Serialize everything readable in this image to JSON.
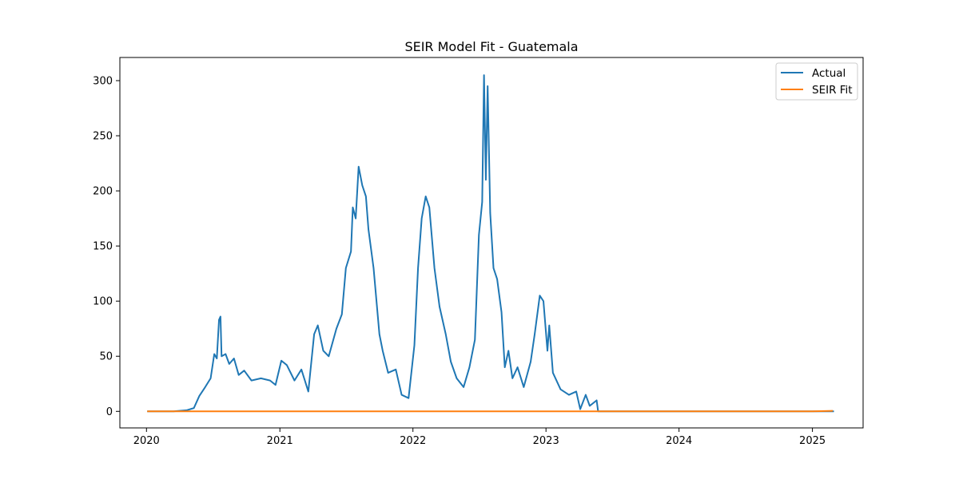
{
  "chart_data": {
    "type": "line",
    "title": "SEIR Model Fit - Guatemala",
    "xlabel": "",
    "ylabel": "",
    "x_axis_type": "date",
    "xlim": [
      "2019-10-20",
      "2025-05-20"
    ],
    "ylim": [
      -15,
      321
    ],
    "x_ticks": [
      {
        "date": "2020-01-01",
        "label": "2020"
      },
      {
        "date": "2021-01-01",
        "label": "2021"
      },
      {
        "date": "2022-01-01",
        "label": "2022"
      },
      {
        "date": "2023-01-01",
        "label": "2023"
      },
      {
        "date": "2024-01-01",
        "label": "2024"
      },
      {
        "date": "2025-01-01",
        "label": "2025"
      }
    ],
    "y_ticks": [
      {
        "value": 0,
        "label": "0"
      },
      {
        "value": 50,
        "label": "50"
      },
      {
        "value": 100,
        "label": "100"
      },
      {
        "value": 150,
        "label": "150"
      },
      {
        "value": 200,
        "label": "200"
      },
      {
        "value": 250,
        "label": "250"
      },
      {
        "value": 300,
        "label": "300"
      }
    ],
    "grid": false,
    "legend_position": "top-right",
    "series": [
      {
        "name": "Actual",
        "color": "#1f77b4",
        "points": [
          [
            "2020-01-03",
            0
          ],
          [
            "2020-03-15",
            0
          ],
          [
            "2020-04-20",
            1
          ],
          [
            "2020-05-10",
            3
          ],
          [
            "2020-05-25",
            14
          ],
          [
            "2020-06-10",
            22
          ],
          [
            "2020-06-25",
            30
          ],
          [
            "2020-07-05",
            52
          ],
          [
            "2020-07-12",
            48
          ],
          [
            "2020-07-18",
            83
          ],
          [
            "2020-07-22",
            86
          ],
          [
            "2020-07-25",
            50
          ],
          [
            "2020-08-05",
            52
          ],
          [
            "2020-08-15",
            43
          ],
          [
            "2020-08-28",
            48
          ],
          [
            "2020-09-10",
            33
          ],
          [
            "2020-09-25",
            37
          ],
          [
            "2020-10-15",
            28
          ],
          [
            "2020-11-10",
            30
          ],
          [
            "2020-12-05",
            28
          ],
          [
            "2020-12-20",
            24
          ],
          [
            "2021-01-05",
            46
          ],
          [
            "2021-01-20",
            42
          ],
          [
            "2021-02-10",
            28
          ],
          [
            "2021-03-01",
            38
          ],
          [
            "2021-03-20",
            18
          ],
          [
            "2021-04-05",
            70
          ],
          [
            "2021-04-15",
            78
          ],
          [
            "2021-04-30",
            55
          ],
          [
            "2021-05-15",
            50
          ],
          [
            "2021-06-05",
            75
          ],
          [
            "2021-06-20",
            88
          ],
          [
            "2021-07-01",
            130
          ],
          [
            "2021-07-15",
            145
          ],
          [
            "2021-07-20",
            185
          ],
          [
            "2021-07-28",
            175
          ],
          [
            "2021-08-05",
            222
          ],
          [
            "2021-08-15",
            205
          ],
          [
            "2021-08-25",
            195
          ],
          [
            "2021-09-01",
            165
          ],
          [
            "2021-09-15",
            130
          ],
          [
            "2021-10-01",
            70
          ],
          [
            "2021-10-10",
            55
          ],
          [
            "2021-10-25",
            35
          ],
          [
            "2021-11-15",
            38
          ],
          [
            "2021-12-01",
            15
          ],
          [
            "2021-12-20",
            12
          ],
          [
            "2022-01-05",
            60
          ],
          [
            "2022-01-15",
            130
          ],
          [
            "2022-01-25",
            175
          ],
          [
            "2022-02-05",
            195
          ],
          [
            "2022-02-15",
            185
          ],
          [
            "2022-03-01",
            130
          ],
          [
            "2022-03-15",
            95
          ],
          [
            "2022-04-01",
            70
          ],
          [
            "2022-04-15",
            45
          ],
          [
            "2022-05-01",
            30
          ],
          [
            "2022-05-20",
            22
          ],
          [
            "2022-06-05",
            40
          ],
          [
            "2022-06-20",
            65
          ],
          [
            "2022-07-01",
            160
          ],
          [
            "2022-07-10",
            190
          ],
          [
            "2022-07-15",
            305
          ],
          [
            "2022-07-20",
            210
          ],
          [
            "2022-07-25",
            295
          ],
          [
            "2022-08-01",
            180
          ],
          [
            "2022-08-10",
            130
          ],
          [
            "2022-08-20",
            120
          ],
          [
            "2022-09-01",
            90
          ],
          [
            "2022-09-10",
            40
          ],
          [
            "2022-09-20",
            55
          ],
          [
            "2022-10-01",
            30
          ],
          [
            "2022-10-15",
            40
          ],
          [
            "2022-11-01",
            22
          ],
          [
            "2022-11-20",
            45
          ],
          [
            "2022-12-01",
            70
          ],
          [
            "2022-12-15",
            105
          ],
          [
            "2022-12-25",
            100
          ],
          [
            "2023-01-05",
            55
          ],
          [
            "2023-01-10",
            78
          ],
          [
            "2023-01-20",
            35
          ],
          [
            "2023-02-10",
            20
          ],
          [
            "2023-03-05",
            15
          ],
          [
            "2023-03-25",
            18
          ],
          [
            "2023-04-05",
            2
          ],
          [
            "2023-04-20",
            15
          ],
          [
            "2023-05-01",
            5
          ],
          [
            "2023-05-20",
            10
          ],
          [
            "2023-05-24",
            0
          ],
          [
            "2025-03-01",
            0
          ]
        ]
      },
      {
        "name": "SEIR Fit",
        "color": "#ff7f0e",
        "points": [
          [
            "2020-01-03",
            0
          ],
          [
            "2025-01-01",
            0
          ],
          [
            "2025-02-26",
            0.5
          ]
        ]
      }
    ]
  }
}
